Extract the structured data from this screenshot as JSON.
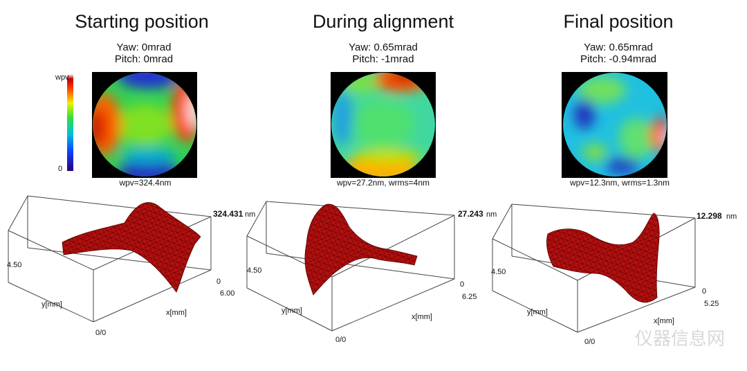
{
  "panels": [
    {
      "title": "Starting position",
      "yaw": "Yaw: 0mrad",
      "pitch": "Pitch: 0mrad",
      "caption": "wpv=324.4nm",
      "plot": {
        "peak": "324.431",
        "unit": "nm",
        "y_tick": "4.50",
        "x_start": "0",
        "x_end": "6.00",
        "y_label": "y[mm]",
        "x_label": "x[mm]",
        "origin": "0/0"
      }
    },
    {
      "title": "During alignment",
      "yaw": "Yaw: 0.65mrad",
      "pitch": "Pitch: -1mrad",
      "caption": "wpv=27.2nm, wrms=4nm",
      "plot": {
        "peak": "27.243",
        "unit": "nm",
        "y_tick": "4.50",
        "x_start": "0",
        "x_end": "6.25",
        "y_label": "y[mm]",
        "x_label": "x[mm]",
        "origin": "0/0"
      }
    },
    {
      "title": "Final position",
      "yaw": "Yaw: 0.65mrad",
      "pitch": "Pitch: -0.94mrad",
      "caption": "wpv=12.3nm, wrms=1.3nm",
      "plot": {
        "peak": "12.298",
        "unit": "nm",
        "y_tick": "4.50",
        "x_start": "0",
        "x_end": "5.25",
        "y_label": "y[mm]",
        "x_label": "x[mm]",
        "origin": "0/0"
      }
    }
  ],
  "colorbar": {
    "top": "wpv",
    "bottom": "0"
  },
  "watermark": "仪器信息网"
}
